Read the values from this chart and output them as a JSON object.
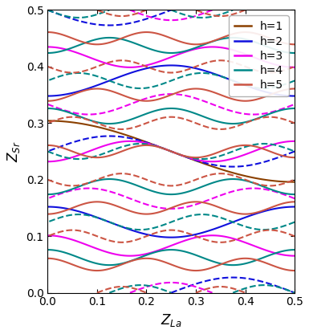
{
  "title": "",
  "xlabel": "$Z_{La}$",
  "ylabel": "$Z_{Sr}$",
  "xlim": [
    0.0,
    0.5
  ],
  "ylim": [
    0.0,
    0.5
  ],
  "legend_entries": [
    "h=1",
    "h=2",
    "h=3",
    "h=4",
    "h=5"
  ],
  "colors": [
    "#8B4000",
    "#1010DD",
    "#EE00EE",
    "#008888",
    "#CC5544"
  ],
  "h_values": [
    1,
    2,
    3,
    4,
    5
  ],
  "grid_points": 800,
  "background_color": "#ffffff",
  "figsize": [
    3.85,
    4.16
  ],
  "dpi": 100
}
